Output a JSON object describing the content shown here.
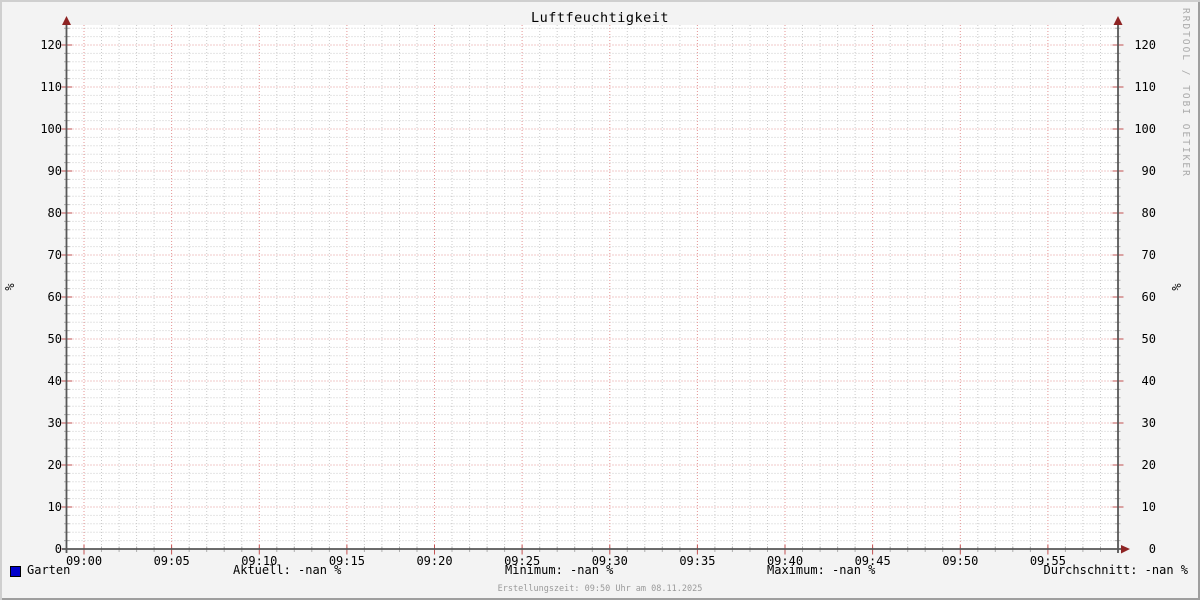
{
  "title": "Luftfeuchtigkeit",
  "vertical_label_left": "%",
  "vertical_label_right": "%",
  "watermark": "RRDTOOL / TOBI OETIKER",
  "footer": "Erstellungszeit: 09:50 Uhr am 08.11.2025",
  "legend": {
    "series": [
      {
        "label": "Garten",
        "color": "#0000cc"
      }
    ],
    "stats": [
      {
        "label": "Aktuell:",
        "value": "-nan %"
      },
      {
        "label": "Minimum:",
        "value": "-nan %"
      },
      {
        "label": "Maximum:",
        "value": "-nan %"
      },
      {
        "label": "Durchschnitt:",
        "value": "-nan %"
      }
    ]
  },
  "chart_data": {
    "type": "line",
    "title": "Luftfeuchtigkeit",
    "xlabel": "",
    "ylabel": "%",
    "ylim": [
      0,
      125
    ],
    "y_ticks": [
      0,
      10,
      20,
      30,
      40,
      50,
      60,
      70,
      80,
      90,
      100,
      110,
      120
    ],
    "y_minor_step": 2,
    "x_ticks": [
      "09:00",
      "09:05",
      "09:10",
      "09:15",
      "09:20",
      "09:25",
      "09:30",
      "09:35",
      "09:40",
      "09:45",
      "09:50",
      "09:55"
    ],
    "x_minor_step_minutes": 1,
    "x_major_step_minutes": 5,
    "grid": true,
    "legend_position": "bottom",
    "series": [
      {
        "name": "Garten",
        "color": "#0000cc",
        "values": []
      }
    ]
  },
  "colors": {
    "background": "#f3f3f3",
    "canvas": "#ffffff",
    "major_grid": "#e59595",
    "minor_grid": "#cbcbcb",
    "major_tick": "#c25252",
    "minor_tick": "#aeaeae",
    "axis": "#575757",
    "arrow": "#8e2323",
    "text": "#000000",
    "muted_text": "#9a9a9a",
    "shade_light": "#cfcfcf",
    "shade_dark": "#9e9e9e",
    "series_blue": "#0000cc"
  }
}
